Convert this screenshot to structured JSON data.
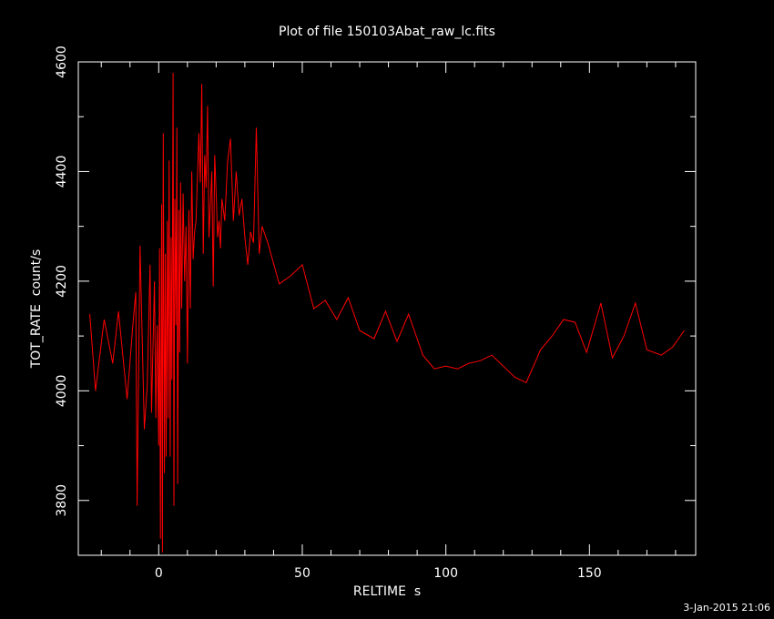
{
  "chart_data": {
    "type": "line",
    "title": "Plot of file 150103Abat_raw_lc.fits",
    "xlabel": "RELTIME  s",
    "ylabel": "TOT_RATE  count/s",
    "xlim": [
      -28,
      187
    ],
    "ylim": [
      3700,
      4600
    ],
    "x_ticks": [
      0,
      50,
      100,
      150
    ],
    "y_ticks": [
      3800,
      4000,
      4200,
      4400,
      4600
    ],
    "series_color": "#ff0000",
    "series": [
      {
        "x": [
          -24,
          -22,
          -19,
          -16,
          -14,
          -11,
          -9,
          -8,
          -7.5,
          -6.5,
          -5,
          -4,
          -3,
          -2.5,
          -2,
          -1.5,
          -1,
          -0.5,
          0,
          0.3,
          0.6,
          1,
          1.3,
          1.6,
          2,
          2.3,
          2.6,
          3,
          3.3,
          3.6,
          4,
          4.3,
          4.6,
          5,
          5.3,
          5.6,
          6,
          6.3,
          6.6,
          7,
          7.3,
          7.6,
          8,
          8.5,
          9,
          9.5,
          10,
          10.5,
          11,
          11.5,
          12,
          12.5,
          13,
          14,
          14.5,
          15,
          15.5,
          16,
          16.5,
          17,
          17.5,
          18,
          18.5,
          19,
          19.5,
          20,
          20.5,
          21,
          21.5,
          22,
          22.5,
          23,
          24,
          25,
          26,
          27,
          28,
          29,
          30,
          31,
          32,
          33,
          34,
          35,
          36,
          38,
          42,
          46,
          50,
          54,
          58,
          62,
          66,
          70,
          75,
          79,
          83,
          87,
          92,
          96,
          100,
          104,
          108,
          112,
          116,
          120,
          124,
          128,
          133,
          137,
          141,
          145,
          149,
          154,
          158,
          162,
          166,
          170,
          175,
          179,
          183
        ],
        "y": [
          4140,
          4000,
          4130,
          4050,
          4145,
          3985,
          4120,
          4180,
          3790,
          4265,
          3930,
          4010,
          4230,
          3960,
          4080,
          4200,
          3950,
          4120,
          3900,
          4260,
          3730,
          4340,
          3705,
          4470,
          3850,
          4250,
          3880,
          4310,
          3950,
          4420,
          3880,
          4280,
          4020,
          4580,
          3790,
          4350,
          4120,
          4480,
          3830,
          4330,
          4070,
          4380,
          4150,
          4360,
          4200,
          4300,
          4050,
          4330,
          4150,
          4400,
          4240,
          4290,
          4310,
          4470,
          4380,
          4560,
          4250,
          4430,
          4370,
          4520,
          4280,
          4340,
          4400,
          4190,
          4430,
          4360,
          4280,
          4310,
          4260,
          4350,
          4330,
          4310,
          4420,
          4460,
          4310,
          4400,
          4320,
          4350,
          4280,
          4230,
          4290,
          4270,
          4480,
          4250,
          4300,
          4270,
          4195,
          4210,
          4230,
          4150,
          4165,
          4130,
          4170,
          4110,
          4095,
          4145,
          4090,
          4140,
          4065,
          4040,
          4045,
          4040,
          4050,
          4055,
          4065,
          4045,
          4025,
          4015,
          4075,
          4100,
          4130,
          4125,
          4070,
          4160,
          4060,
          4100,
          4160,
          4075,
          4065,
          4080,
          4110
        ]
      }
    ]
  },
  "footer": {
    "timestamp": "3-Jan-2015 21:06"
  }
}
